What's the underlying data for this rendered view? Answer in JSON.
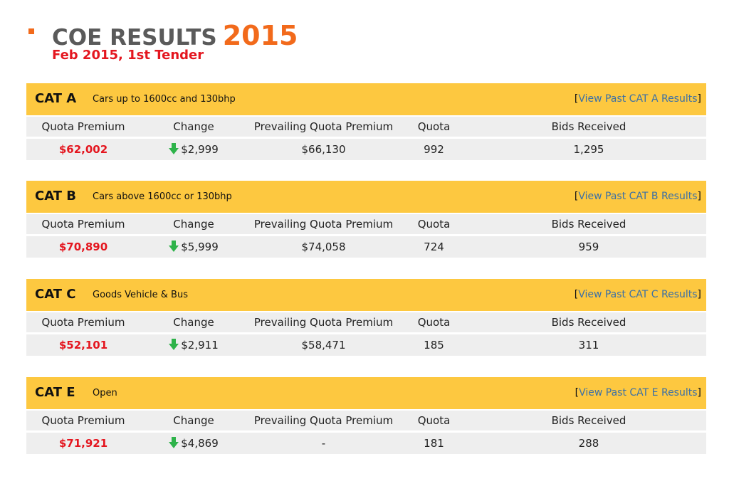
{
  "header": {
    "title": "COE RESULTS",
    "year": "2015",
    "subtitle": "Feb 2015, 1st Tender"
  },
  "columns": {
    "quota_premium": "Quota Premium",
    "change": "Change",
    "prevailing": "Prevailing Quota Premium",
    "quota": "Quota",
    "bids": "Bids Received"
  },
  "categories": [
    {
      "name": "CAT A",
      "description": "Cars up to 1600cc and 130bhp",
      "link": "View Past CAT A Results",
      "quota_premium": "$62,002",
      "change": "$2,999",
      "change_direction": "down",
      "prevailing": "$66,130",
      "quota": "992",
      "bids": "1,295"
    },
    {
      "name": "CAT B",
      "description": "Cars above 1600cc or 130bhp",
      "link": "View Past CAT B Results",
      "quota_premium": "$70,890",
      "change": "$5,999",
      "change_direction": "down",
      "prevailing": "$74,058",
      "quota": "724",
      "bids": "959"
    },
    {
      "name": "CAT C",
      "description": "Goods Vehicle & Bus",
      "link": "View Past CAT C Results",
      "quota_premium": "$52,101",
      "change": "$2,911",
      "change_direction": "down",
      "prevailing": "$58,471",
      "quota": "185",
      "bids": "311"
    },
    {
      "name": "CAT E",
      "description": "Open",
      "link": "View Past CAT E Results",
      "quota_premium": "$71,921",
      "change": "$4,869",
      "change_direction": "down",
      "prevailing": "-",
      "quota": "181",
      "bids": "288"
    }
  ],
  "colors": {
    "accent": "#f26a1b",
    "category_bar": "#fdc840",
    "premium_red": "#e4161f",
    "link_blue": "#3b70a6",
    "arrow_green": "#2eb34a"
  },
  "icons": {
    "change": "arrow-down-icon"
  }
}
